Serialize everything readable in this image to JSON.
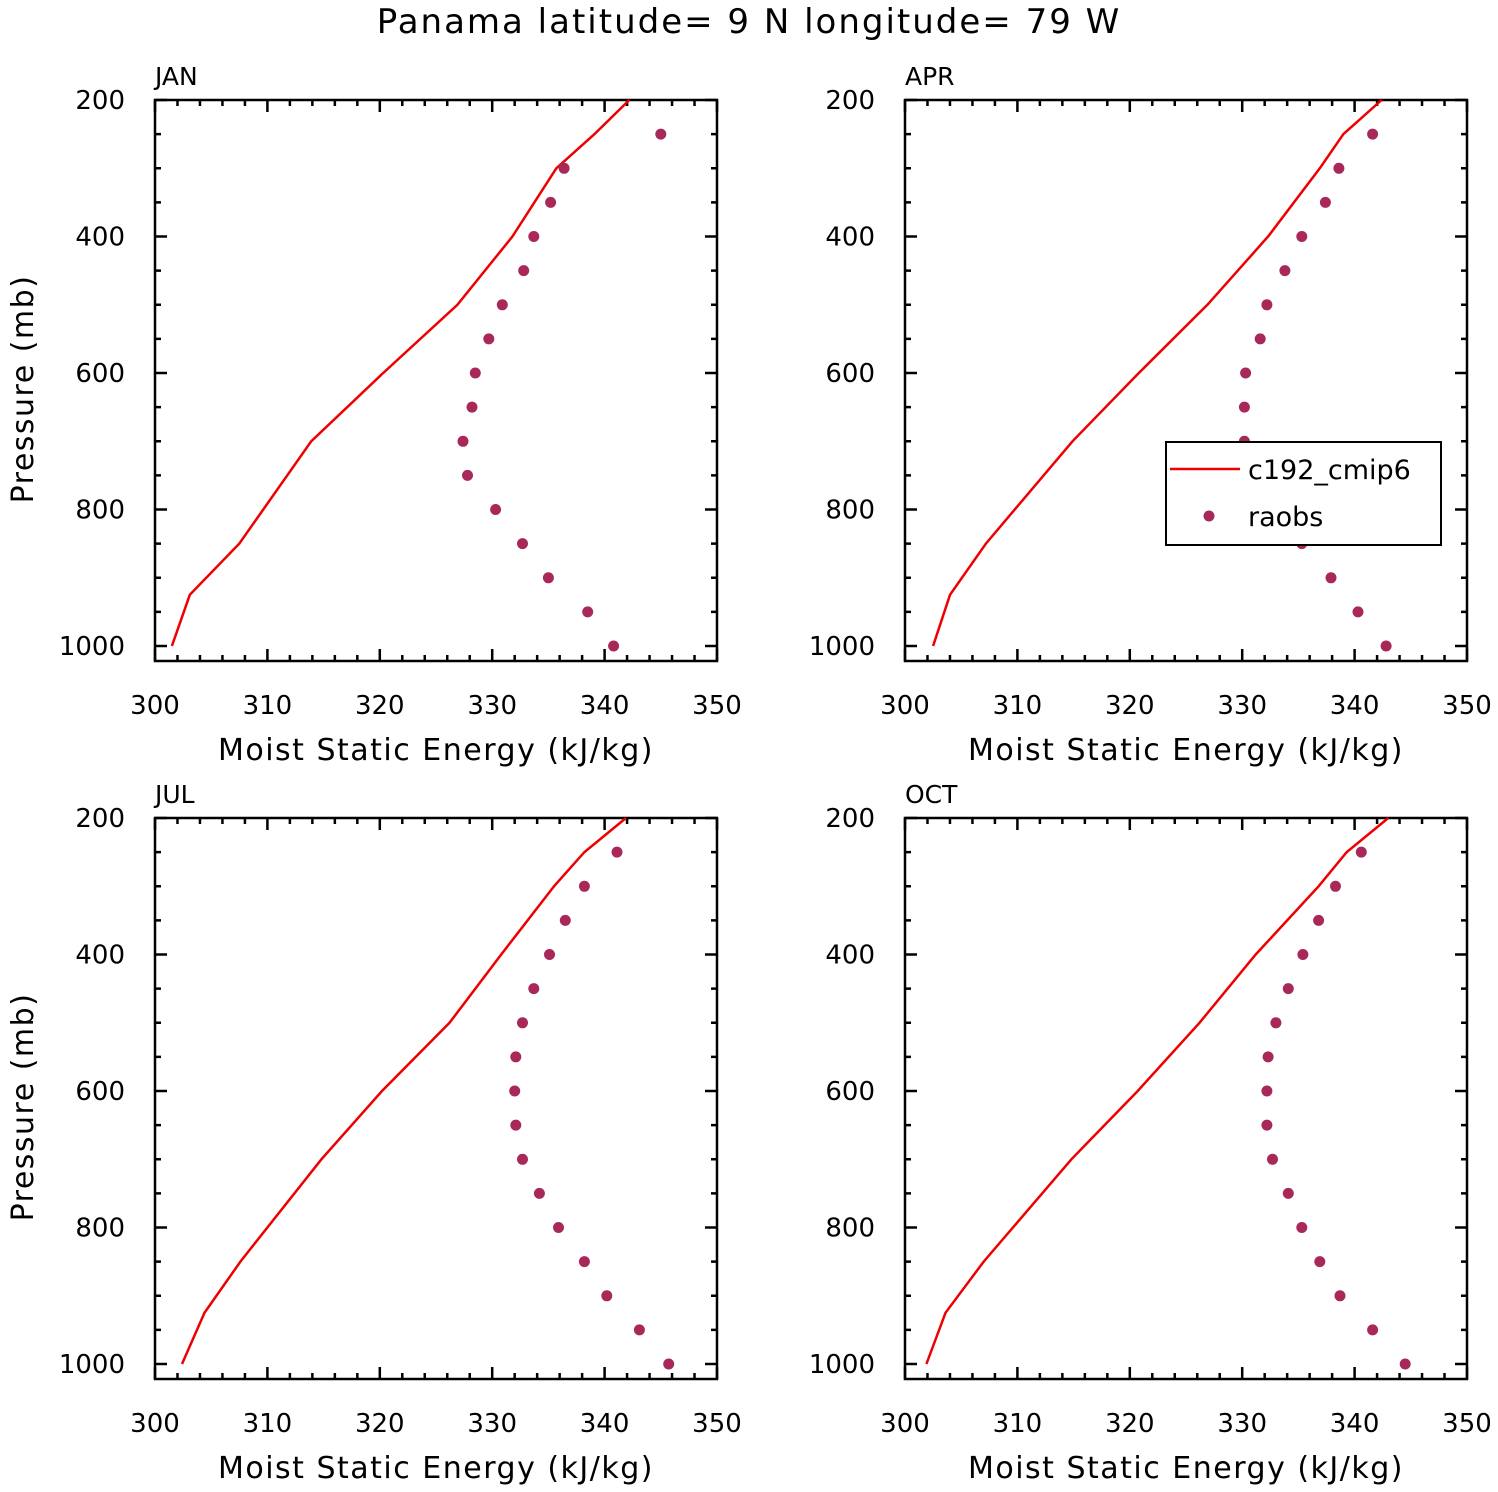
{
  "title": "Panama  latitude= 9 N longitude= 79 W",
  "colors": {
    "model": "#ee0000",
    "obs": "#a8285a",
    "axis": "#000000"
  },
  "chart_data": {
    "type": "line",
    "xlabel": "Moist Static Energy (kJ/kg)",
    "ylabel": "Pressure (mb)",
    "xlim": [
      300,
      350
    ],
    "ylim": [
      1000,
      200
    ],
    "x_ticks": [
      300,
      310,
      320,
      330,
      340,
      350
    ],
    "y_ticks": [
      200,
      400,
      600,
      800,
      1000
    ],
    "legend": {
      "placement": "right-middle of APR panel",
      "entries": [
        "c192_cmip6",
        "raobs"
      ]
    },
    "panels": [
      {
        "month": "JAN",
        "model": {
          "name": "c192_cmip6",
          "style": "line",
          "pressure": [
            1000,
            925,
            850,
            700,
            600,
            500,
            400,
            300,
            250,
            200
          ],
          "mse": [
            301.5,
            303.1,
            307.5,
            313.9,
            320.3,
            326.9,
            331.8,
            335.7,
            339.1,
            342.2
          ]
        },
        "obs": {
          "name": "raobs",
          "style": "dots",
          "pressure": [
            1000,
            950,
            900,
            850,
            800,
            750,
            700,
            650,
            600,
            550,
            500,
            450,
            400,
            350,
            300,
            250
          ],
          "mse": [
            340.8,
            338.5,
            335.0,
            332.7,
            330.3,
            327.8,
            327.4,
            328.2,
            328.5,
            329.7,
            330.9,
            332.8,
            333.7,
            335.2,
            336.4,
            345.0
          ]
        }
      },
      {
        "month": "APR",
        "model": {
          "name": "c192_cmip6",
          "style": "line",
          "pressure": [
            1000,
            925,
            850,
            700,
            600,
            500,
            400,
            300,
            250,
            200
          ],
          "mse": [
            302.5,
            304.0,
            307.2,
            314.9,
            320.8,
            326.9,
            332.3,
            336.9,
            339.0,
            342.4
          ]
        },
        "obs": {
          "name": "raobs",
          "style": "dots",
          "pressure": [
            1000,
            950,
            900,
            850,
            800,
            750,
            700,
            650,
            600,
            550,
            500,
            450,
            400,
            350,
            300,
            250
          ],
          "mse": [
            342.8,
            340.3,
            337.9,
            335.3,
            334.0,
            332.2,
            330.2,
            330.2,
            330.3,
            331.6,
            332.2,
            333.8,
            335.3,
            337.4,
            338.6,
            341.6
          ]
        }
      },
      {
        "month": "JUL",
        "model": {
          "name": "c192_cmip6",
          "style": "line",
          "pressure": [
            1000,
            925,
            850,
            700,
            600,
            500,
            400,
            300,
            250,
            200
          ],
          "mse": [
            302.4,
            304.4,
            307.6,
            314.8,
            320.2,
            326.2,
            330.8,
            335.5,
            338.2,
            341.9
          ]
        },
        "obs": {
          "name": "raobs",
          "style": "dots",
          "pressure": [
            1000,
            950,
            900,
            850,
            800,
            750,
            700,
            650,
            600,
            550,
            500,
            450,
            400,
            350,
            300,
            250
          ],
          "mse": [
            345.7,
            343.1,
            340.2,
            338.2,
            335.9,
            334.2,
            332.7,
            332.1,
            332.0,
            332.1,
            332.7,
            333.7,
            335.1,
            336.5,
            338.2,
            341.1
          ]
        }
      },
      {
        "month": "OCT",
        "model": {
          "name": "c192_cmip6",
          "style": "line",
          "pressure": [
            1000,
            925,
            850,
            700,
            600,
            500,
            400,
            300,
            250,
            200
          ],
          "mse": [
            301.9,
            303.6,
            307.0,
            314.8,
            320.7,
            326.2,
            331.2,
            336.8,
            339.3,
            343.0
          ]
        },
        "obs": {
          "name": "raobs",
          "style": "dots",
          "pressure": [
            1000,
            950,
            900,
            850,
            800,
            750,
            700,
            650,
            600,
            550,
            500,
            450,
            400,
            350,
            300,
            250
          ],
          "mse": [
            344.5,
            341.6,
            338.7,
            336.9,
            335.3,
            334.1,
            332.7,
            332.2,
            332.2,
            332.3,
            333.0,
            334.1,
            335.4,
            336.8,
            338.3,
            340.6
          ]
        }
      }
    ]
  }
}
